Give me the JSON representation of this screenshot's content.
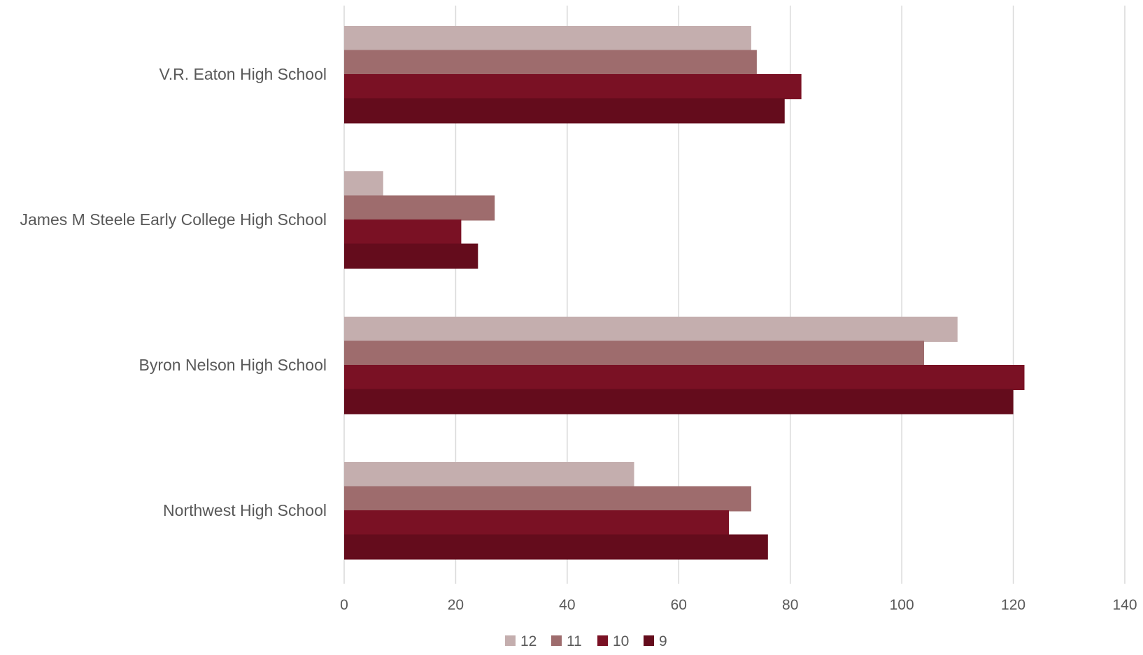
{
  "chart_data": {
    "type": "bar",
    "orientation": "horizontal",
    "categories": [
      "V.R. Eaton High School",
      "James M Steele Early College High School",
      "Byron Nelson High School",
      "Northwest High School"
    ],
    "series": [
      {
        "name": "12",
        "color": "#c4aeae",
        "values": [
          73,
          7,
          110,
          52
        ]
      },
      {
        "name": "11",
        "color": "#9e6c6d",
        "values": [
          74,
          27,
          104,
          73
        ]
      },
      {
        "name": "10",
        "color": "#7a1124",
        "values": [
          82,
          21,
          122,
          69
        ]
      },
      {
        "name": "9",
        "color": "#640c1c",
        "values": [
          79,
          24,
          120,
          76
        ]
      }
    ],
    "xlim": [
      0,
      140
    ],
    "x_ticks": [
      "0",
      "20",
      "40",
      "60",
      "80",
      "100",
      "120",
      "140"
    ],
    "title": "",
    "xlabel": "",
    "ylabel": "",
    "grid": "vertical",
    "legend_position": "bottom"
  }
}
